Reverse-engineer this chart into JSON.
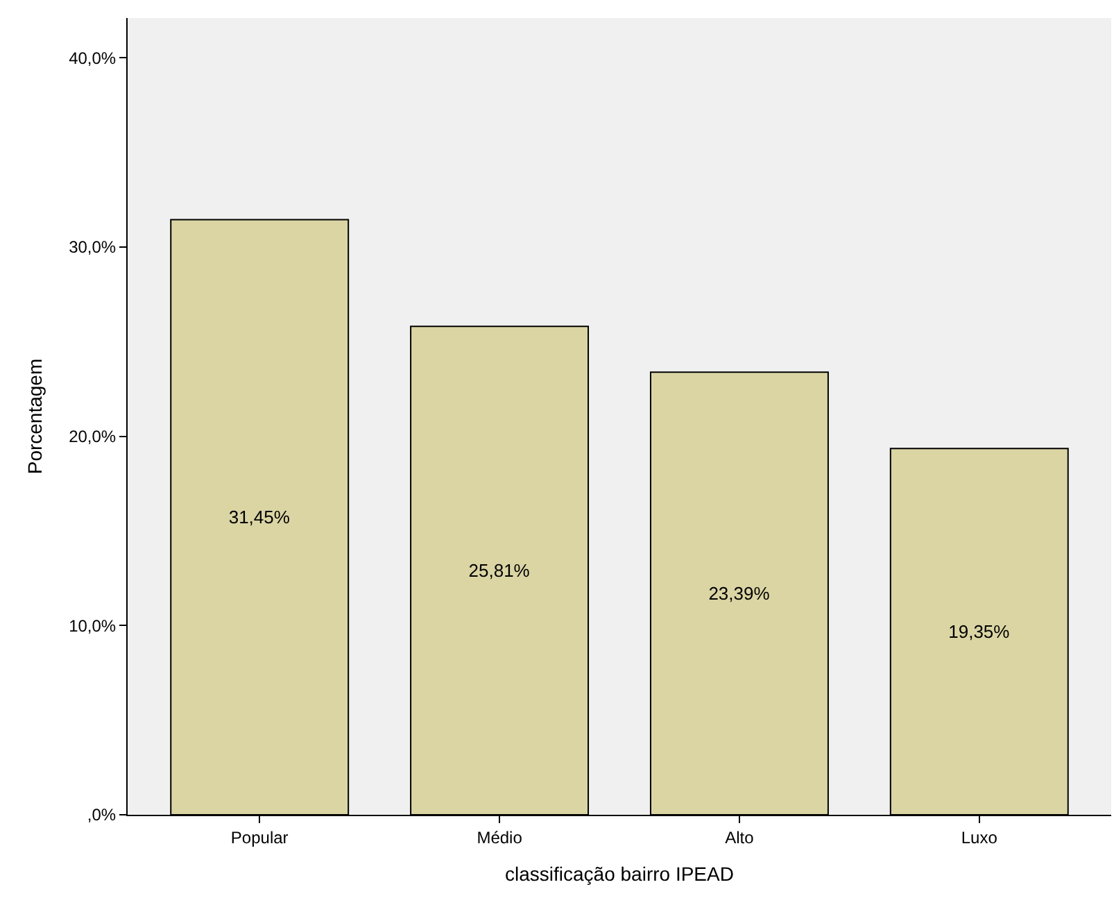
{
  "chart_data": {
    "type": "bar",
    "xlabel": "classificação bairro IPEAD",
    "ylabel": "Porcentagem",
    "categories": [
      "Popular",
      "Médio",
      "Alto",
      "Luxo"
    ],
    "values": [
      31.45,
      25.81,
      23.39,
      19.35
    ],
    "value_labels": [
      "31,45%",
      "25,81%",
      "23,39%",
      "19,35%"
    ],
    "color": "#dbd5a4",
    "ylim": [
      0,
      42.1
    ],
    "yticks": [
      {
        "value": 0,
        "label": ",0%"
      },
      {
        "value": 10,
        "label": "10,0%"
      },
      {
        "value": 20,
        "label": "20,0%"
      },
      {
        "value": 30,
        "label": "30,0%"
      },
      {
        "value": 40,
        "label": "40,0%"
      }
    ],
    "grid": false,
    "legend": false
  }
}
